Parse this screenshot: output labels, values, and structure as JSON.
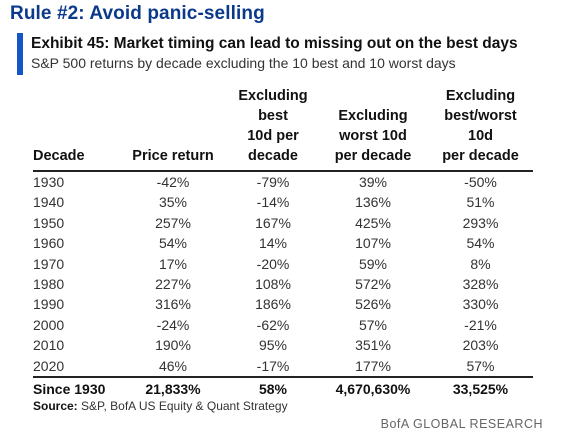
{
  "rule_title": "Rule #2: Avoid panic-selling",
  "exhibit": {
    "title": "Exhibit 45: Market timing can lead to missing out on the best days",
    "subtitle": "S&P 500 returns by decade excluding the 10 best and 10 worst days",
    "accent_color": "#1455c7"
  },
  "table": {
    "headers": [
      [
        "Decade"
      ],
      [
        "Price return"
      ],
      [
        "Excluding",
        "best",
        "10d per",
        "decade"
      ],
      [
        "Excluding",
        "worst 10d",
        "per decade"
      ],
      [
        "Excluding",
        "best/worst",
        "10d",
        "per decade"
      ]
    ],
    "rows": [
      [
        "1930",
        "-42%",
        "-79%",
        "39%",
        "-50%"
      ],
      [
        "1940",
        "35%",
        "-14%",
        "136%",
        "51%"
      ],
      [
        "1950",
        "257%",
        "167%",
        "425%",
        "293%"
      ],
      [
        "1960",
        "54%",
        "14%",
        "107%",
        "54%"
      ],
      [
        "1970",
        "17%",
        "-20%",
        "59%",
        "8%"
      ],
      [
        "1980",
        "227%",
        "108%",
        "572%",
        "328%"
      ],
      [
        "1990",
        "316%",
        "186%",
        "526%",
        "330%"
      ],
      [
        "2000",
        "-24%",
        "-62%",
        "57%",
        "-21%"
      ],
      [
        "2010",
        "190%",
        "95%",
        "351%",
        "203%"
      ],
      [
        "2020",
        "46%",
        "-17%",
        "177%",
        "57%"
      ]
    ],
    "total": [
      "Since 1930",
      "21,833%",
      "58%",
      "4,670,630%",
      "33,525%"
    ]
  },
  "source": {
    "label": "Source:",
    "text": "S&P, BofA US Equity & Quant Strategy"
  },
  "footer": "BofA GLOBAL RESEARCH",
  "colors": {
    "title_blue": "#0b3a8c",
    "accent_bar": "#1455c7"
  }
}
